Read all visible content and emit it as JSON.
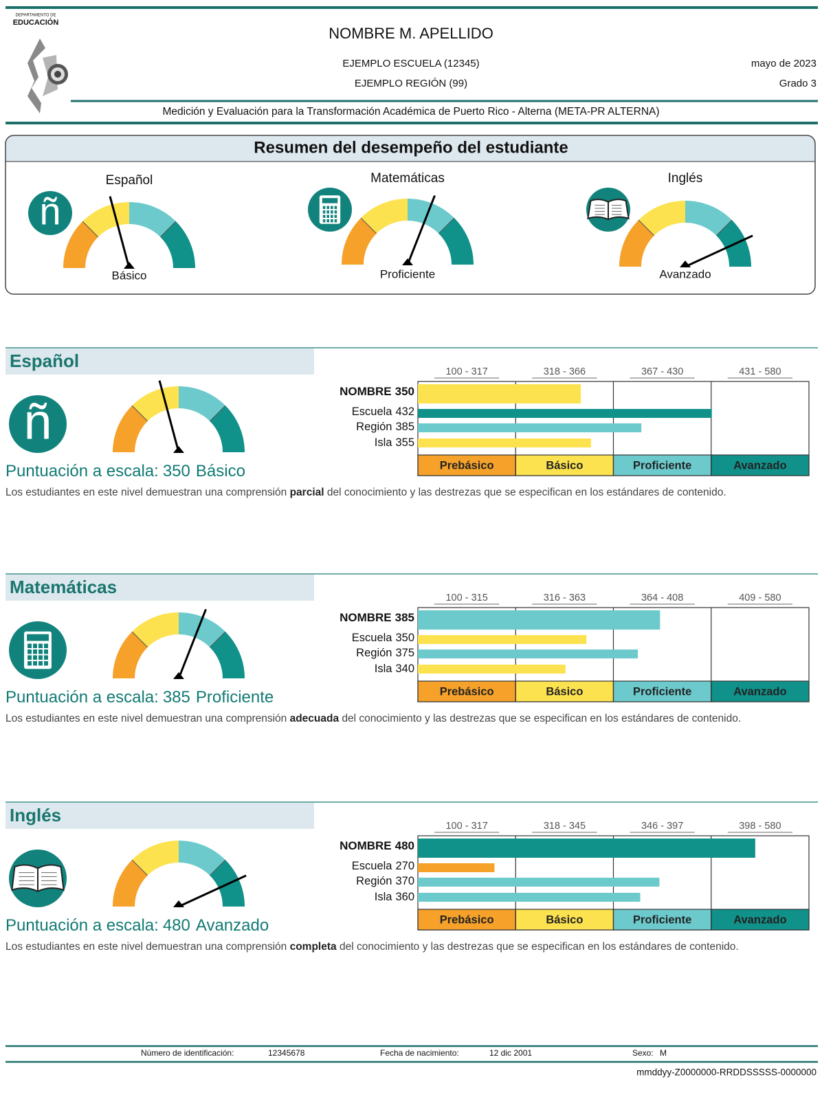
{
  "header": {
    "agency_top": "DEPARTAMENTO DE",
    "agency": "EDUCACIÓN",
    "student_name": "NOMBRE M. APELLIDO",
    "school": "EJEMPLO ESCUELA (12345)",
    "region": "EJEMPLO REGIÓN (99)",
    "date": "mayo de 2023",
    "grade": "Grado 3",
    "program": "Medición y Evaluación para la Transformación Académica de Puerto Rico - Alterna (META-PR ALTERNA)"
  },
  "level_colors": [
    "#f5a12a",
    "#fde24f",
    "#6ccacd",
    "#10918a"
  ],
  "summary": {
    "title": "Resumen del desempeño del estudiante",
    "subjects": [
      {
        "name": "Español",
        "level": "Básico"
      },
      {
        "name": "Matemáticas",
        "level": "Proficiente"
      },
      {
        "name": "Inglés",
        "level": "Avanzado"
      }
    ]
  },
  "sections": [
    {
      "title": "Español",
      "icon": "ñ",
      "score_label": "Puntuación a escala:",
      "score": 350,
      "level": "Básico",
      "description": [
        "Los estudiantes en este nivel demuestran una comprensión ",
        "parcial",
        " del conocimiento y las destrezas que se especifican en los estándares de contenido."
      ],
      "bands": [
        {
          "label": "100 - 317",
          "min": 100,
          "max": 317,
          "name": "Prebásico"
        },
        {
          "label": "318 - 366",
          "min": 318,
          "max": 366,
          "name": "Básico"
        },
        {
          "label": "367 - 430",
          "min": 367,
          "max": 430,
          "name": "Proficiente"
        },
        {
          "label": "431 - 580",
          "min": 431,
          "max": 580,
          "name": "Avanzado"
        }
      ],
      "bars": [
        {
          "label": "NOMBRE",
          "value": 350
        },
        {
          "label": "Escuela",
          "value": 432
        },
        {
          "label": "Región",
          "value": 385
        },
        {
          "label": "Isla",
          "value": 355
        }
      ]
    },
    {
      "title": "Matemáticas",
      "score_label": "Puntuación a escala:",
      "score": 385,
      "level": "Proficiente",
      "description": [
        "Los estudiantes en este nivel demuestran una comprensión ",
        "adecuada",
        " del conocimiento y las destrezas que se especifican en los estándares de contenido."
      ],
      "bands": [
        {
          "label": "100 - 315",
          "min": 100,
          "max": 315,
          "name": "Prebásico"
        },
        {
          "label": "316 - 363",
          "min": 316,
          "max": 363,
          "name": "Básico"
        },
        {
          "label": "364 - 408",
          "min": 364,
          "max": 408,
          "name": "Proficiente"
        },
        {
          "label": "409 - 580",
          "min": 409,
          "max": 580,
          "name": "Avanzado"
        }
      ],
      "bars": [
        {
          "label": "NOMBRE",
          "value": 385
        },
        {
          "label": "Escuela",
          "value": 350
        },
        {
          "label": "Región",
          "value": 375
        },
        {
          "label": "Isla",
          "value": 340
        }
      ]
    },
    {
      "title": "Inglés",
      "score_label": "Puntuación a escala:",
      "score": 480,
      "level": "Avanzado",
      "description": [
        "Los estudiantes en este nivel demuestran una comprensión ",
        "completa",
        " del conocimiento y las destrezas que se especifican en los estándares de contenido."
      ],
      "bands": [
        {
          "label": "100 - 317",
          "min": 100,
          "max": 317,
          "name": "Prebásico"
        },
        {
          "label": "318 - 345",
          "min": 318,
          "max": 345,
          "name": "Básico"
        },
        {
          "label": "346 - 397",
          "min": 346,
          "max": 397,
          "name": "Proficiente"
        },
        {
          "label": "398 - 580",
          "min": 398,
          "max": 580,
          "name": "Avanzado"
        }
      ],
      "bars": [
        {
          "label": "NOMBRE",
          "value": 480
        },
        {
          "label": "Escuela",
          "value": 270
        },
        {
          "label": "Región",
          "value": 370
        },
        {
          "label": "Isla",
          "value": 360
        }
      ]
    }
  ],
  "footer": {
    "id_label": "Número de identificación:",
    "id": "12345678",
    "dob_label": "Fecha de nacimiento:",
    "dob": "12 dic 2001",
    "sex_label": "Sexo:",
    "sex": "M",
    "code": "mmddyy-Z0000000-RRDDSSSSS-0000000"
  }
}
